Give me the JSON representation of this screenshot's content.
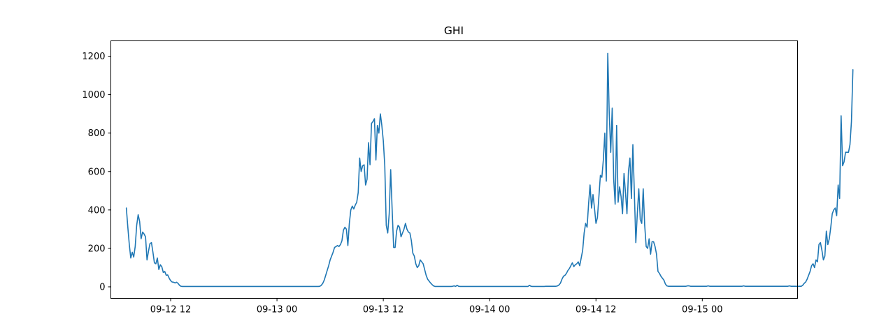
{
  "chart_data": {
    "type": "line",
    "title": "GHI",
    "xlabel": "",
    "ylabel": "",
    "x_start": "09-12 07:00",
    "x_step_minutes": 10,
    "xlim": [
      "09-12 05:15",
      "09-15 10:45"
    ],
    "ylim": [
      -60,
      1280
    ],
    "x_ticks": [
      "09-12 12",
      "09-13 00",
      "09-13 12",
      "09-14 00",
      "09-14 12",
      "09-15 00"
    ],
    "y_ticks": [
      0,
      200,
      400,
      600,
      800,
      1000,
      1200
    ],
    "grid": false,
    "legend": "none",
    "series": [
      {
        "color": "#1f77b4",
        "values": [
          410,
          310,
          220,
          150,
          180,
          155,
          210,
          320,
          375,
          340,
          250,
          285,
          275,
          260,
          140,
          185,
          225,
          230,
          180,
          125,
          120,
          150,
          90,
          115,
          105,
          75,
          80,
          60,
          62,
          45,
          32,
          25,
          24,
          20,
          24,
          18,
          8,
          3,
          2,
          2,
          2,
          2,
          2,
          2,
          2,
          2,
          2,
          2,
          2,
          2,
          2,
          2,
          2,
          2,
          2,
          2,
          2,
          2,
          2,
          2,
          2,
          2,
          2,
          2,
          2,
          2,
          2,
          2,
          2,
          2,
          2,
          2,
          2,
          2,
          2,
          2,
          2,
          2,
          2,
          2,
          2,
          2,
          2,
          2,
          2,
          2,
          2,
          2,
          2,
          2,
          2,
          2,
          2,
          2,
          2,
          2,
          2,
          2,
          2,
          2,
          2,
          2,
          2,
          2,
          2,
          2,
          2,
          2,
          2,
          2,
          2,
          2,
          2,
          2,
          2,
          2,
          2,
          2,
          2,
          2,
          2,
          2,
          2,
          2,
          2,
          2,
          2,
          2,
          2,
          2,
          2,
          3,
          8,
          18,
          35,
          60,
          85,
          110,
          140,
          160,
          180,
          205,
          210,
          215,
          210,
          220,
          240,
          295,
          310,
          300,
          215,
          330,
          400,
          420,
          405,
          425,
          440,
          490,
          670,
          600,
          630,
          635,
          530,
          560,
          750,
          635,
          850,
          860,
          875,
          660,
          840,
          800,
          900,
          840,
          760,
          630,
          320,
          280,
          380,
          610,
          400,
          205,
          205,
          290,
          320,
          310,
          260,
          280,
          300,
          330,
          300,
          285,
          280,
          240,
          175,
          160,
          120,
          100,
          110,
          140,
          130,
          120,
          90,
          60,
          40,
          30,
          20,
          12,
          5,
          2,
          2,
          2,
          2,
          2,
          2,
          2,
          2,
          2,
          2,
          2,
          2,
          3,
          5,
          2,
          8,
          3,
          2,
          2,
          2,
          2,
          2,
          2,
          2,
          2,
          2,
          2,
          2,
          2,
          2,
          2,
          2,
          2,
          2,
          2,
          2,
          2,
          2,
          2,
          2,
          2,
          2,
          2,
          2,
          2,
          2,
          2,
          2,
          2,
          2,
          2,
          2,
          2,
          2,
          2,
          2,
          2,
          2,
          2,
          2,
          2,
          2,
          2,
          2,
          8,
          3,
          2,
          2,
          2,
          2,
          2,
          2,
          2,
          2,
          2,
          3,
          3,
          3,
          3,
          3,
          3,
          3,
          3,
          5,
          10,
          20,
          40,
          55,
          60,
          70,
          85,
          95,
          110,
          125,
          105,
          115,
          120,
          130,
          110,
          150,
          190,
          280,
          330,
          310,
          430,
          530,
          410,
          480,
          410,
          330,
          360,
          470,
          580,
          570,
          660,
          800,
          550,
          1215,
          900,
          700,
          930,
          560,
          430,
          840,
          440,
          520,
          470,
          380,
          590,
          490,
          380,
          600,
          670,
          460,
          740,
          490,
          230,
          380,
          510,
          350,
          330,
          510,
          320,
          210,
          200,
          250,
          170,
          235,
          235,
          210,
          170,
          80,
          70,
          55,
          45,
          35,
          15,
          5,
          3,
          3,
          3,
          3,
          3,
          3,
          3,
          3,
          3,
          3,
          3,
          3,
          3,
          5,
          5,
          3,
          3,
          3,
          3,
          3,
          3,
          3,
          3,
          3,
          3,
          3,
          3,
          5,
          3,
          3,
          3,
          3,
          3,
          3,
          3,
          3,
          3,
          3,
          3,
          3,
          3,
          3,
          3,
          3,
          3,
          3,
          3,
          3,
          3,
          3,
          3,
          5,
          3,
          3,
          3,
          3,
          3,
          3,
          3,
          3,
          3,
          3,
          3,
          3,
          3,
          3,
          3,
          3,
          3,
          3,
          3,
          3,
          3,
          3,
          3,
          3,
          3,
          3,
          3,
          3,
          3,
          3,
          5,
          3,
          3,
          3,
          3,
          3,
          3,
          3,
          3,
          8,
          18,
          25,
          40,
          60,
          80,
          110,
          120,
          100,
          140,
          130,
          220,
          230,
          190,
          140,
          160,
          290,
          220,
          250,
          310,
          380,
          400,
          410,
          370,
          530,
          460,
          890,
          630,
          650,
          700,
          700,
          700,
          740,
          860,
          1130
        ]
      }
    ]
  }
}
